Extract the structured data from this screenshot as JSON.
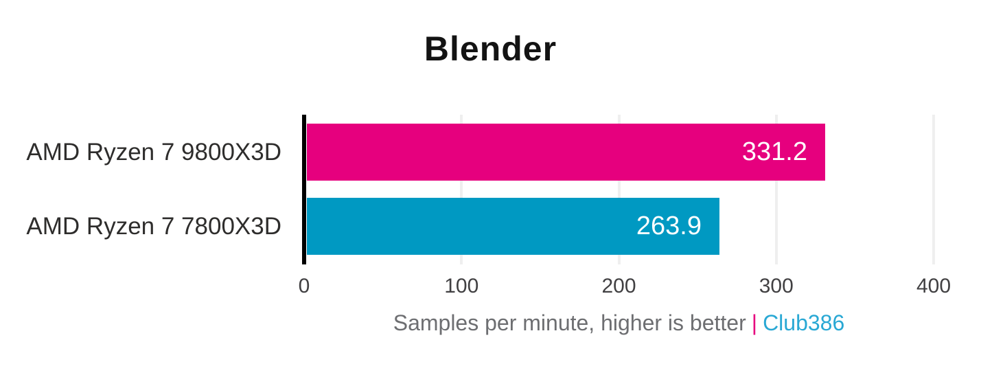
{
  "title": "Blender",
  "chart_data": {
    "type": "bar",
    "orientation": "horizontal",
    "title": "Blender",
    "categories": [
      "AMD Ryzen 7 9800X3D",
      "AMD Ryzen 7 7800X3D"
    ],
    "values": [
      331.2,
      263.9
    ],
    "value_labels": [
      "331.2",
      "263.9"
    ],
    "bar_colors": [
      "#e6007e",
      "#0099c2"
    ],
    "xlim": [
      0,
      400
    ],
    "xticks": [
      0,
      100,
      200,
      300,
      400
    ],
    "xtick_labels": [
      "0",
      "100",
      "200",
      "300",
      "400"
    ],
    "xlabel": "Samples per minute, higher is better",
    "grid": true,
    "legend": "none",
    "value_label_position": "inside-end",
    "higher_is_better": true
  },
  "caption": {
    "text": "Samples per minute, higher is better",
    "separator": "|",
    "brand": "Club386"
  },
  "colors": {
    "bar_primary": "#e6007e",
    "bar_secondary": "#0099c2",
    "axis_line": "#000000",
    "gridline": "#efefef",
    "title_text": "#131313",
    "category_text": "#2e2d2c",
    "tick_text": "#414042",
    "caption_text": "#6d6e71",
    "caption_separator": "#e6007e",
    "caption_brand": "#29a8d4",
    "bar_value_text": "#ffffff",
    "background": "#ffffff"
  }
}
